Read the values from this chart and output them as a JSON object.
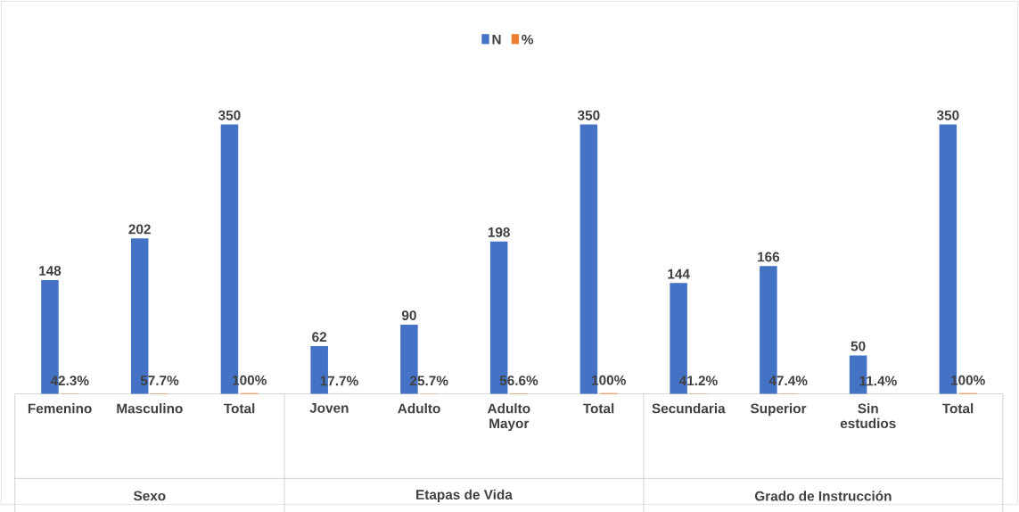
{
  "chart_data": {
    "type": "bar",
    "categories": [
      "Femenino",
      "Masculino",
      "Total",
      "Joven",
      "Adulto",
      "Adulto Mayor",
      "Total",
      "Secundaria",
      "Superior",
      "Sin estudios",
      "Total"
    ],
    "series": [
      {
        "name": "N",
        "color": "#4472c4",
        "values": [
          148,
          202,
          350,
          62,
          90,
          198,
          350,
          144,
          166,
          50,
          350
        ],
        "value_labels": [
          "148",
          "202",
          "350",
          "62",
          "90",
          "198",
          "350",
          "144",
          "166",
          "50",
          "350"
        ]
      },
      {
        "name": "%",
        "color": "#ed7d31",
        "values": [
          0.423,
          0.577,
          1,
          0.177,
          0.257,
          0.566,
          1,
          0.412,
          0.474,
          0.114,
          1
        ],
        "value_labels": [
          "42.3%",
          "57.7%",
          "100%",
          "17.7%",
          "25.7%",
          "56.6%",
          "100%",
          "41.2%",
          "47.4%",
          "11.4%",
          "100%"
        ]
      }
    ],
    "annotations": [
      "Sexo",
      "Etapas de Vida",
      "Grado de Instrucción"
    ],
    "legend": "top",
    "grid": false
  }
}
